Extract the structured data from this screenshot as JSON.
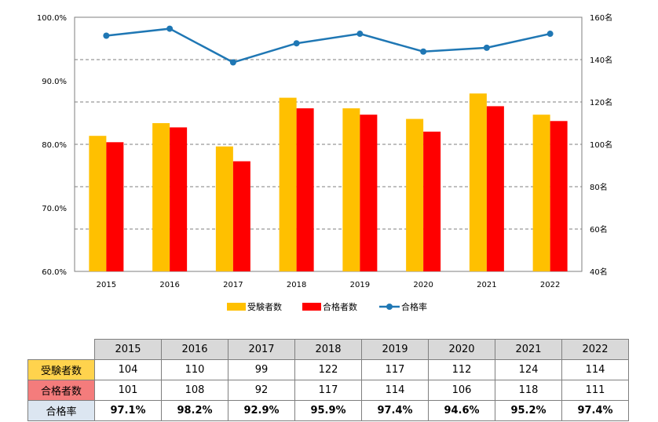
{
  "chart_data": {
    "type": "bar+line",
    "categories": [
      "2015",
      "2016",
      "2017",
      "2018",
      "2019",
      "2020",
      "2021",
      "2022"
    ],
    "series": [
      {
        "name": "受験者数",
        "type": "bar",
        "axis": "right",
        "color": "#FFC000",
        "values": [
          104,
          110,
          99,
          122,
          117,
          112,
          124,
          114
        ]
      },
      {
        "name": "合格者数",
        "type": "bar",
        "axis": "right",
        "color": "#FF0000",
        "values": [
          101,
          108,
          92,
          117,
          114,
          106,
          118,
          111
        ]
      },
      {
        "name": "合格率",
        "type": "line",
        "axis": "left",
        "color": "#1F77B4",
        "values": [
          97.1,
          98.2,
          92.9,
          95.9,
          97.4,
          94.6,
          95.2,
          97.4
        ]
      }
    ],
    "left_axis": {
      "min": 60,
      "max": 100,
      "step": 10,
      "tick_labels": [
        "60.0%",
        "70.0%",
        "80.0%",
        "90.0%",
        "100.0%"
      ]
    },
    "right_axis": {
      "min": 40,
      "max": 160,
      "step": 20,
      "tick_labels": [
        "40名",
        "60名",
        "80名",
        "100名",
        "120名",
        "140名",
        "160名"
      ]
    },
    "grid": "dashed horizontal",
    "legend_position": "bottom"
  },
  "table": {
    "years": [
      "2015",
      "2016",
      "2017",
      "2018",
      "2019",
      "2020",
      "2021",
      "2022"
    ],
    "rows": [
      {
        "label": "受験者数",
        "color": "#FFD34D",
        "values": [
          "104",
          "110",
          "99",
          "122",
          "117",
          "112",
          "124",
          "114"
        ]
      },
      {
        "label": "合格者数",
        "color": "#F47C7C",
        "values": [
          "101",
          "108",
          "92",
          "117",
          "114",
          "106",
          "118",
          "111"
        ]
      },
      {
        "label": "合格率",
        "color": "#DCE6F1",
        "values": [
          "97.1%",
          "98.2%",
          "92.9%",
          "95.9%",
          "97.4%",
          "94.6%",
          "95.2%",
          "97.4%"
        ]
      }
    ]
  }
}
